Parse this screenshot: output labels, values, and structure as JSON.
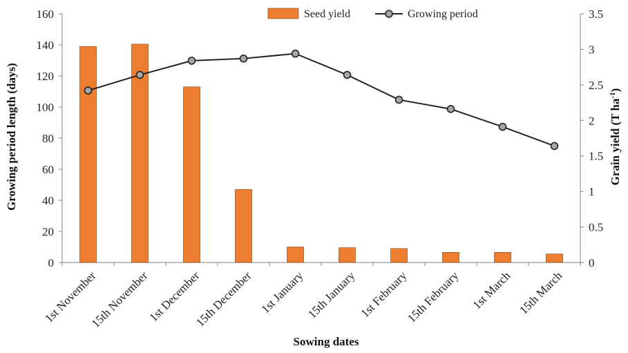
{
  "chart_data": {
    "type": "bar",
    "xlabel": "Sowing dates",
    "ylabel_left": "Growing period length (days)",
    "ylabel_right_main": "Grain yield (T ha",
    "ylabel_right_sup": "-1",
    "ylabel_right_end": ")",
    "categories": [
      "1st November",
      "15th November",
      "1st December",
      "15th December",
      "1st January",
      "15th January",
      "1st February",
      "15th February",
      "1st March",
      "15th March"
    ],
    "left_axis": {
      "min": 0,
      "max": 160,
      "ticks": [
        "0",
        "20",
        "40",
        "60",
        "80",
        "100",
        "120",
        "140",
        "160"
      ]
    },
    "right_axis": {
      "min": 0,
      "max": 3.5,
      "ticks": [
        "0",
        "0.5",
        "1",
        "1.5",
        "2",
        "2.5",
        "3",
        "3.5"
      ]
    },
    "series": [
      {
        "name": "Seed yield",
        "type": "bar",
        "axis": "left",
        "color": "#ED7D31",
        "values": [
          139,
          140.5,
          113,
          47,
          10,
          9.5,
          9,
          6.5,
          6.5,
          5.5
        ]
      },
      {
        "name": "Growing period",
        "type": "line",
        "axis": "right",
        "color": "#222222",
        "marker_color": "#A6A6A6",
        "values": [
          2.42,
          2.64,
          2.84,
          2.87,
          2.94,
          2.64,
          2.29,
          2.16,
          1.91,
          1.64
        ]
      }
    ],
    "legend_position": "top-center",
    "grid": false
  }
}
